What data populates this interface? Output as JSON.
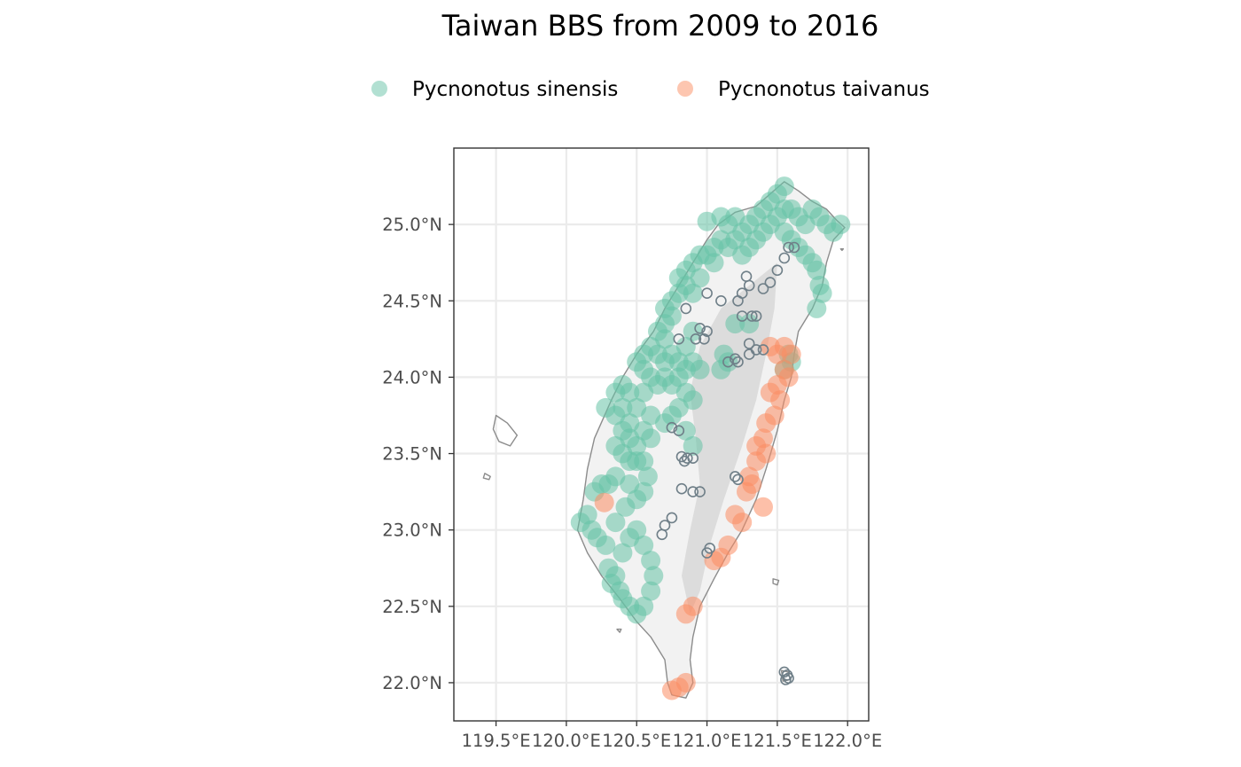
{
  "chart_data": {
    "type": "scatter",
    "title": "Taiwan BBS from 2009 to 2016",
    "xlim": [
      119.2,
      122.15
    ],
    "ylim": [
      21.75,
      25.5
    ],
    "x_ticks": [
      {
        "value": 119.5,
        "label": "119.5°E"
      },
      {
        "value": 120.0,
        "label": "120.0°E"
      },
      {
        "value": 120.5,
        "label": "120.5°E"
      },
      {
        "value": 121.0,
        "label": "121.0°E"
      },
      {
        "value": 121.5,
        "label": "121.5°E"
      },
      {
        "value": 122.0,
        "label": "122.0°E"
      }
    ],
    "y_ticks": [
      {
        "value": 22.0,
        "label": "22.0°N"
      },
      {
        "value": 22.5,
        "label": "22.5°N"
      },
      {
        "value": 23.0,
        "label": "23.0°N"
      },
      {
        "value": 23.5,
        "label": "23.5°N"
      },
      {
        "value": 24.0,
        "label": "24.0°N"
      },
      {
        "value": 24.5,
        "label": "24.5°N"
      },
      {
        "value": 25.0,
        "label": "25.0°N"
      }
    ],
    "grid": true,
    "legend_position": "top",
    "series": [
      {
        "name": "Pycnonotus sinensis",
        "color": "#66c2a5",
        "points": [
          [
            120.1,
            23.05
          ],
          [
            120.15,
            23.1
          ],
          [
            120.2,
            23.25
          ],
          [
            120.18,
            23.0
          ],
          [
            120.25,
            23.3
          ],
          [
            120.3,
            23.3
          ],
          [
            120.22,
            22.95
          ],
          [
            120.28,
            22.9
          ],
          [
            120.3,
            22.75
          ],
          [
            120.35,
            22.7
          ],
          [
            120.32,
            22.65
          ],
          [
            120.38,
            22.6
          ],
          [
            120.4,
            22.55
          ],
          [
            120.45,
            22.5
          ],
          [
            120.5,
            22.45
          ],
          [
            120.55,
            22.5
          ],
          [
            120.6,
            22.6
          ],
          [
            120.62,
            22.7
          ],
          [
            120.35,
            23.05
          ],
          [
            120.4,
            22.85
          ],
          [
            120.45,
            22.95
          ],
          [
            120.5,
            23.0
          ],
          [
            120.55,
            22.9
          ],
          [
            120.6,
            22.8
          ],
          [
            120.42,
            23.15
          ],
          [
            120.5,
            23.2
          ],
          [
            120.55,
            23.25
          ],
          [
            120.45,
            23.3
          ],
          [
            120.58,
            23.35
          ],
          [
            120.35,
            23.35
          ],
          [
            120.35,
            23.55
          ],
          [
            120.4,
            23.5
          ],
          [
            120.45,
            23.45
          ],
          [
            120.5,
            23.45
          ],
          [
            120.55,
            23.45
          ],
          [
            120.5,
            23.55
          ],
          [
            120.45,
            23.6
          ],
          [
            120.4,
            23.65
          ],
          [
            120.35,
            23.75
          ],
          [
            120.4,
            23.8
          ],
          [
            120.45,
            23.7
          ],
          [
            120.55,
            23.65
          ],
          [
            120.6,
            23.6
          ],
          [
            120.6,
            23.75
          ],
          [
            120.5,
            23.8
          ],
          [
            120.45,
            23.9
          ],
          [
            120.4,
            23.95
          ],
          [
            120.35,
            23.9
          ],
          [
            120.28,
            23.8
          ],
          [
            120.55,
            23.9
          ],
          [
            120.6,
            24.0
          ],
          [
            120.65,
            23.95
          ],
          [
            120.7,
            24.0
          ],
          [
            120.75,
            23.95
          ],
          [
            120.8,
            24.0
          ],
          [
            120.85,
            23.9
          ],
          [
            120.9,
            23.85
          ],
          [
            120.8,
            23.8
          ],
          [
            120.75,
            23.75
          ],
          [
            120.7,
            23.7
          ],
          [
            120.55,
            24.05
          ],
          [
            120.5,
            24.1
          ],
          [
            120.55,
            24.15
          ],
          [
            120.6,
            24.2
          ],
          [
            120.65,
            24.15
          ],
          [
            120.7,
            24.1
          ],
          [
            120.75,
            24.15
          ],
          [
            120.8,
            24.1
          ],
          [
            120.85,
            24.05
          ],
          [
            120.9,
            24.1
          ],
          [
            120.95,
            24.05
          ],
          [
            120.85,
            24.2
          ],
          [
            120.7,
            24.25
          ],
          [
            120.65,
            24.3
          ],
          [
            120.7,
            24.35
          ],
          [
            120.75,
            24.4
          ],
          [
            120.7,
            24.45
          ],
          [
            120.75,
            24.5
          ],
          [
            120.8,
            24.55
          ],
          [
            120.85,
            24.6
          ],
          [
            120.9,
            24.55
          ],
          [
            120.8,
            24.65
          ],
          [
            120.85,
            24.7
          ],
          [
            120.9,
            24.75
          ],
          [
            120.95,
            24.8
          ],
          [
            121.0,
            24.8
          ],
          [
            121.05,
            24.85
          ],
          [
            121.1,
            24.9
          ],
          [
            121.15,
            24.85
          ],
          [
            121.2,
            24.9
          ],
          [
            121.25,
            24.95
          ],
          [
            121.3,
            25.0
          ],
          [
            121.35,
            25.05
          ],
          [
            121.4,
            25.1
          ],
          [
            121.45,
            25.15
          ],
          [
            121.5,
            25.2
          ],
          [
            121.55,
            25.25
          ],
          [
            121.6,
            25.1
          ],
          [
            121.65,
            25.05
          ],
          [
            121.7,
            25.0
          ],
          [
            121.75,
            25.1
          ],
          [
            121.8,
            25.05
          ],
          [
            121.85,
            25.0
          ],
          [
            121.9,
            24.95
          ],
          [
            121.95,
            25.0
          ],
          [
            121.4,
            24.95
          ],
          [
            121.45,
            25.0
          ],
          [
            121.5,
            25.05
          ],
          [
            121.55,
            25.1
          ],
          [
            121.35,
            24.9
          ],
          [
            121.3,
            24.85
          ],
          [
            121.25,
            24.8
          ],
          [
            121.55,
            24.95
          ],
          [
            121.6,
            24.9
          ],
          [
            121.65,
            24.85
          ],
          [
            121.7,
            24.8
          ],
          [
            121.75,
            24.75
          ],
          [
            121.78,
            24.7
          ],
          [
            121.8,
            24.6
          ],
          [
            121.82,
            24.55
          ],
          [
            121.78,
            24.45
          ],
          [
            121.1,
            25.05
          ],
          [
            121.15,
            25.0
          ],
          [
            121.2,
            25.05
          ],
          [
            121.0,
            25.02
          ],
          [
            121.05,
            24.75
          ],
          [
            120.95,
            24.65
          ],
          [
            120.9,
            24.3
          ],
          [
            121.1,
            24.05
          ],
          [
            121.15,
            24.1
          ],
          [
            121.12,
            24.15
          ],
          [
            121.2,
            24.35
          ],
          [
            121.3,
            24.35
          ],
          [
            121.55,
            24.05
          ],
          [
            121.6,
            24.1
          ],
          [
            121.58,
            24.15
          ],
          [
            120.85,
            23.65
          ],
          [
            120.9,
            23.55
          ]
        ]
      },
      {
        "name": "Pycnonotus taivanus",
        "color": "#fc8d62",
        "points": [
          [
            120.27,
            23.18
          ],
          [
            121.45,
            24.2
          ],
          [
            121.5,
            24.15
          ],
          [
            121.55,
            24.2
          ],
          [
            121.6,
            24.15
          ],
          [
            121.55,
            24.05
          ],
          [
            121.5,
            23.95
          ],
          [
            121.45,
            23.9
          ],
          [
            121.52,
            23.85
          ],
          [
            121.48,
            23.75
          ],
          [
            121.42,
            23.7
          ],
          [
            121.4,
            23.6
          ],
          [
            121.35,
            23.55
          ],
          [
            121.42,
            23.5
          ],
          [
            121.35,
            23.45
          ],
          [
            121.3,
            23.35
          ],
          [
            121.32,
            23.3
          ],
          [
            121.28,
            23.25
          ],
          [
            121.2,
            23.1
          ],
          [
            121.25,
            23.05
          ],
          [
            121.15,
            22.9
          ],
          [
            121.1,
            22.82
          ],
          [
            121.05,
            22.8
          ],
          [
            120.9,
            22.5
          ],
          [
            120.85,
            22.45
          ],
          [
            120.75,
            21.95
          ],
          [
            120.8,
            21.97
          ],
          [
            120.85,
            22.0
          ],
          [
            121.4,
            23.15
          ],
          [
            121.58,
            24.0
          ]
        ]
      },
      {
        "name": "",
        "color": "#6f7f88",
        "points": [
          [
            120.82,
            23.48
          ],
          [
            120.86,
            23.47
          ],
          [
            120.9,
            23.47
          ],
          [
            120.84,
            23.45
          ],
          [
            120.75,
            23.67
          ],
          [
            120.8,
            23.65
          ],
          [
            120.9,
            23.25
          ],
          [
            120.95,
            23.25
          ],
          [
            120.82,
            23.27
          ],
          [
            120.75,
            23.08
          ],
          [
            120.7,
            23.03
          ],
          [
            120.68,
            22.97
          ],
          [
            121.0,
            22.85
          ],
          [
            121.02,
            22.88
          ],
          [
            121.2,
            23.35
          ],
          [
            121.22,
            23.33
          ],
          [
            120.98,
            24.25
          ],
          [
            121.0,
            24.3
          ],
          [
            120.95,
            24.32
          ],
          [
            120.92,
            24.25
          ],
          [
            121.0,
            24.55
          ],
          [
            121.1,
            24.5
          ],
          [
            121.25,
            24.55
          ],
          [
            121.3,
            24.6
          ],
          [
            121.4,
            24.58
          ],
          [
            121.45,
            24.62
          ],
          [
            121.5,
            24.7
          ],
          [
            121.55,
            24.78
          ],
          [
            121.58,
            24.85
          ],
          [
            121.62,
            24.85
          ],
          [
            121.32,
            24.4
          ],
          [
            121.25,
            24.4
          ],
          [
            121.35,
            24.4
          ],
          [
            121.3,
            24.22
          ],
          [
            121.3,
            24.15
          ],
          [
            121.35,
            24.18
          ],
          [
            121.2,
            24.12
          ],
          [
            121.22,
            24.1
          ],
          [
            121.15,
            24.1
          ],
          [
            121.55,
            22.07
          ],
          [
            121.57,
            22.05
          ],
          [
            121.56,
            22.02
          ],
          [
            121.58,
            22.03
          ],
          [
            121.28,
            24.66
          ],
          [
            121.22,
            24.5
          ],
          [
            120.85,
            24.45
          ],
          [
            120.8,
            24.25
          ],
          [
            121.4,
            24.18
          ]
        ]
      }
    ]
  },
  "legend": {
    "items": [
      {
        "label": "Pycnonotus sinensis",
        "color": "#66c2a5"
      },
      {
        "label": "Pycnonotus taivanus",
        "color": "#fc8d62"
      }
    ]
  }
}
